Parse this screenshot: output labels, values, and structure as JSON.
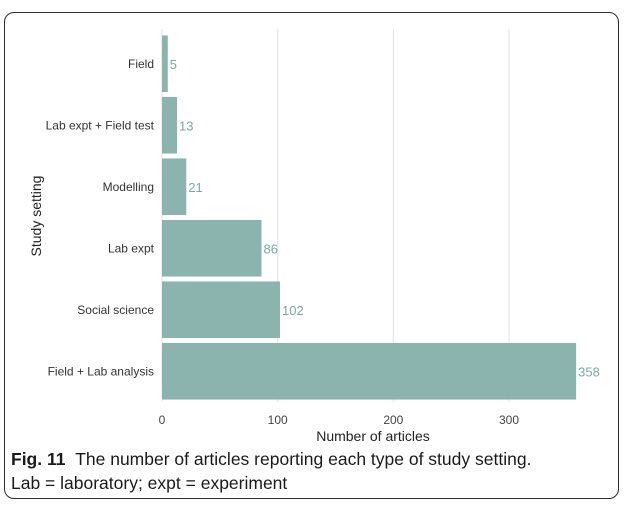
{
  "chart_data": {
    "type": "bar",
    "orientation": "horizontal",
    "categories": [
      "Field",
      "Lab expt + Field test",
      "Modelling",
      "Lab expt",
      "Social science",
      "Field + Lab analysis"
    ],
    "values": [
      5,
      13,
      21,
      86,
      102,
      358
    ],
    "xlabel": "Number of articles",
    "ylabel": "Study setting",
    "xlim": [
      0,
      370
    ],
    "xticks": [
      0,
      100,
      200,
      300
    ],
    "grid": true,
    "bar_color": "#8cb4ae",
    "label_color": "#7aaaa3"
  },
  "caption": {
    "fig_label": "Fig. 11",
    "line1": "The number of articles reporting each type of study setting.",
    "line2": "Lab = laboratory; expt = experiment"
  }
}
